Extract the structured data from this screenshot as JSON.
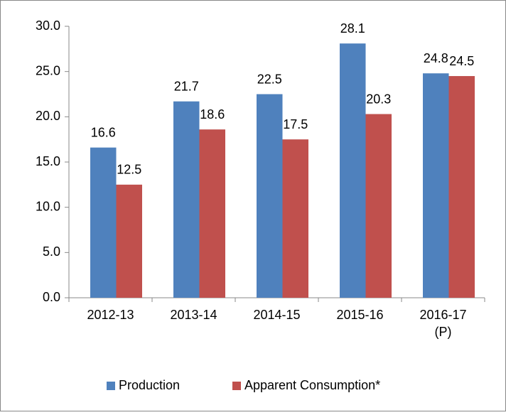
{
  "chart_data": {
    "type": "bar",
    "categories": [
      "2012-13",
      "2013-14",
      "2014-15",
      "2015-16",
      "2016-17 (P)"
    ],
    "series": [
      {
        "name": "Production",
        "color": "#4f81bd",
        "values": [
          16.6,
          21.7,
          22.5,
          28.1,
          24.8
        ]
      },
      {
        "name": "Apparent Consumption*",
        "color": "#c0504d",
        "values": [
          12.5,
          18.6,
          17.5,
          20.3,
          24.5
        ]
      }
    ],
    "ylim": [
      0,
      30
    ],
    "yticks": [
      {
        "value": 0,
        "label": "0.0"
      },
      {
        "value": 5,
        "label": "5.0"
      },
      {
        "value": 10,
        "label": "10.0"
      },
      {
        "value": 15,
        "label": "15.0"
      },
      {
        "value": 20,
        "label": "20.0"
      },
      {
        "value": 25,
        "label": "25.0"
      },
      {
        "value": 30,
        "label": "30.0"
      }
    ],
    "legend": "bottom"
  }
}
